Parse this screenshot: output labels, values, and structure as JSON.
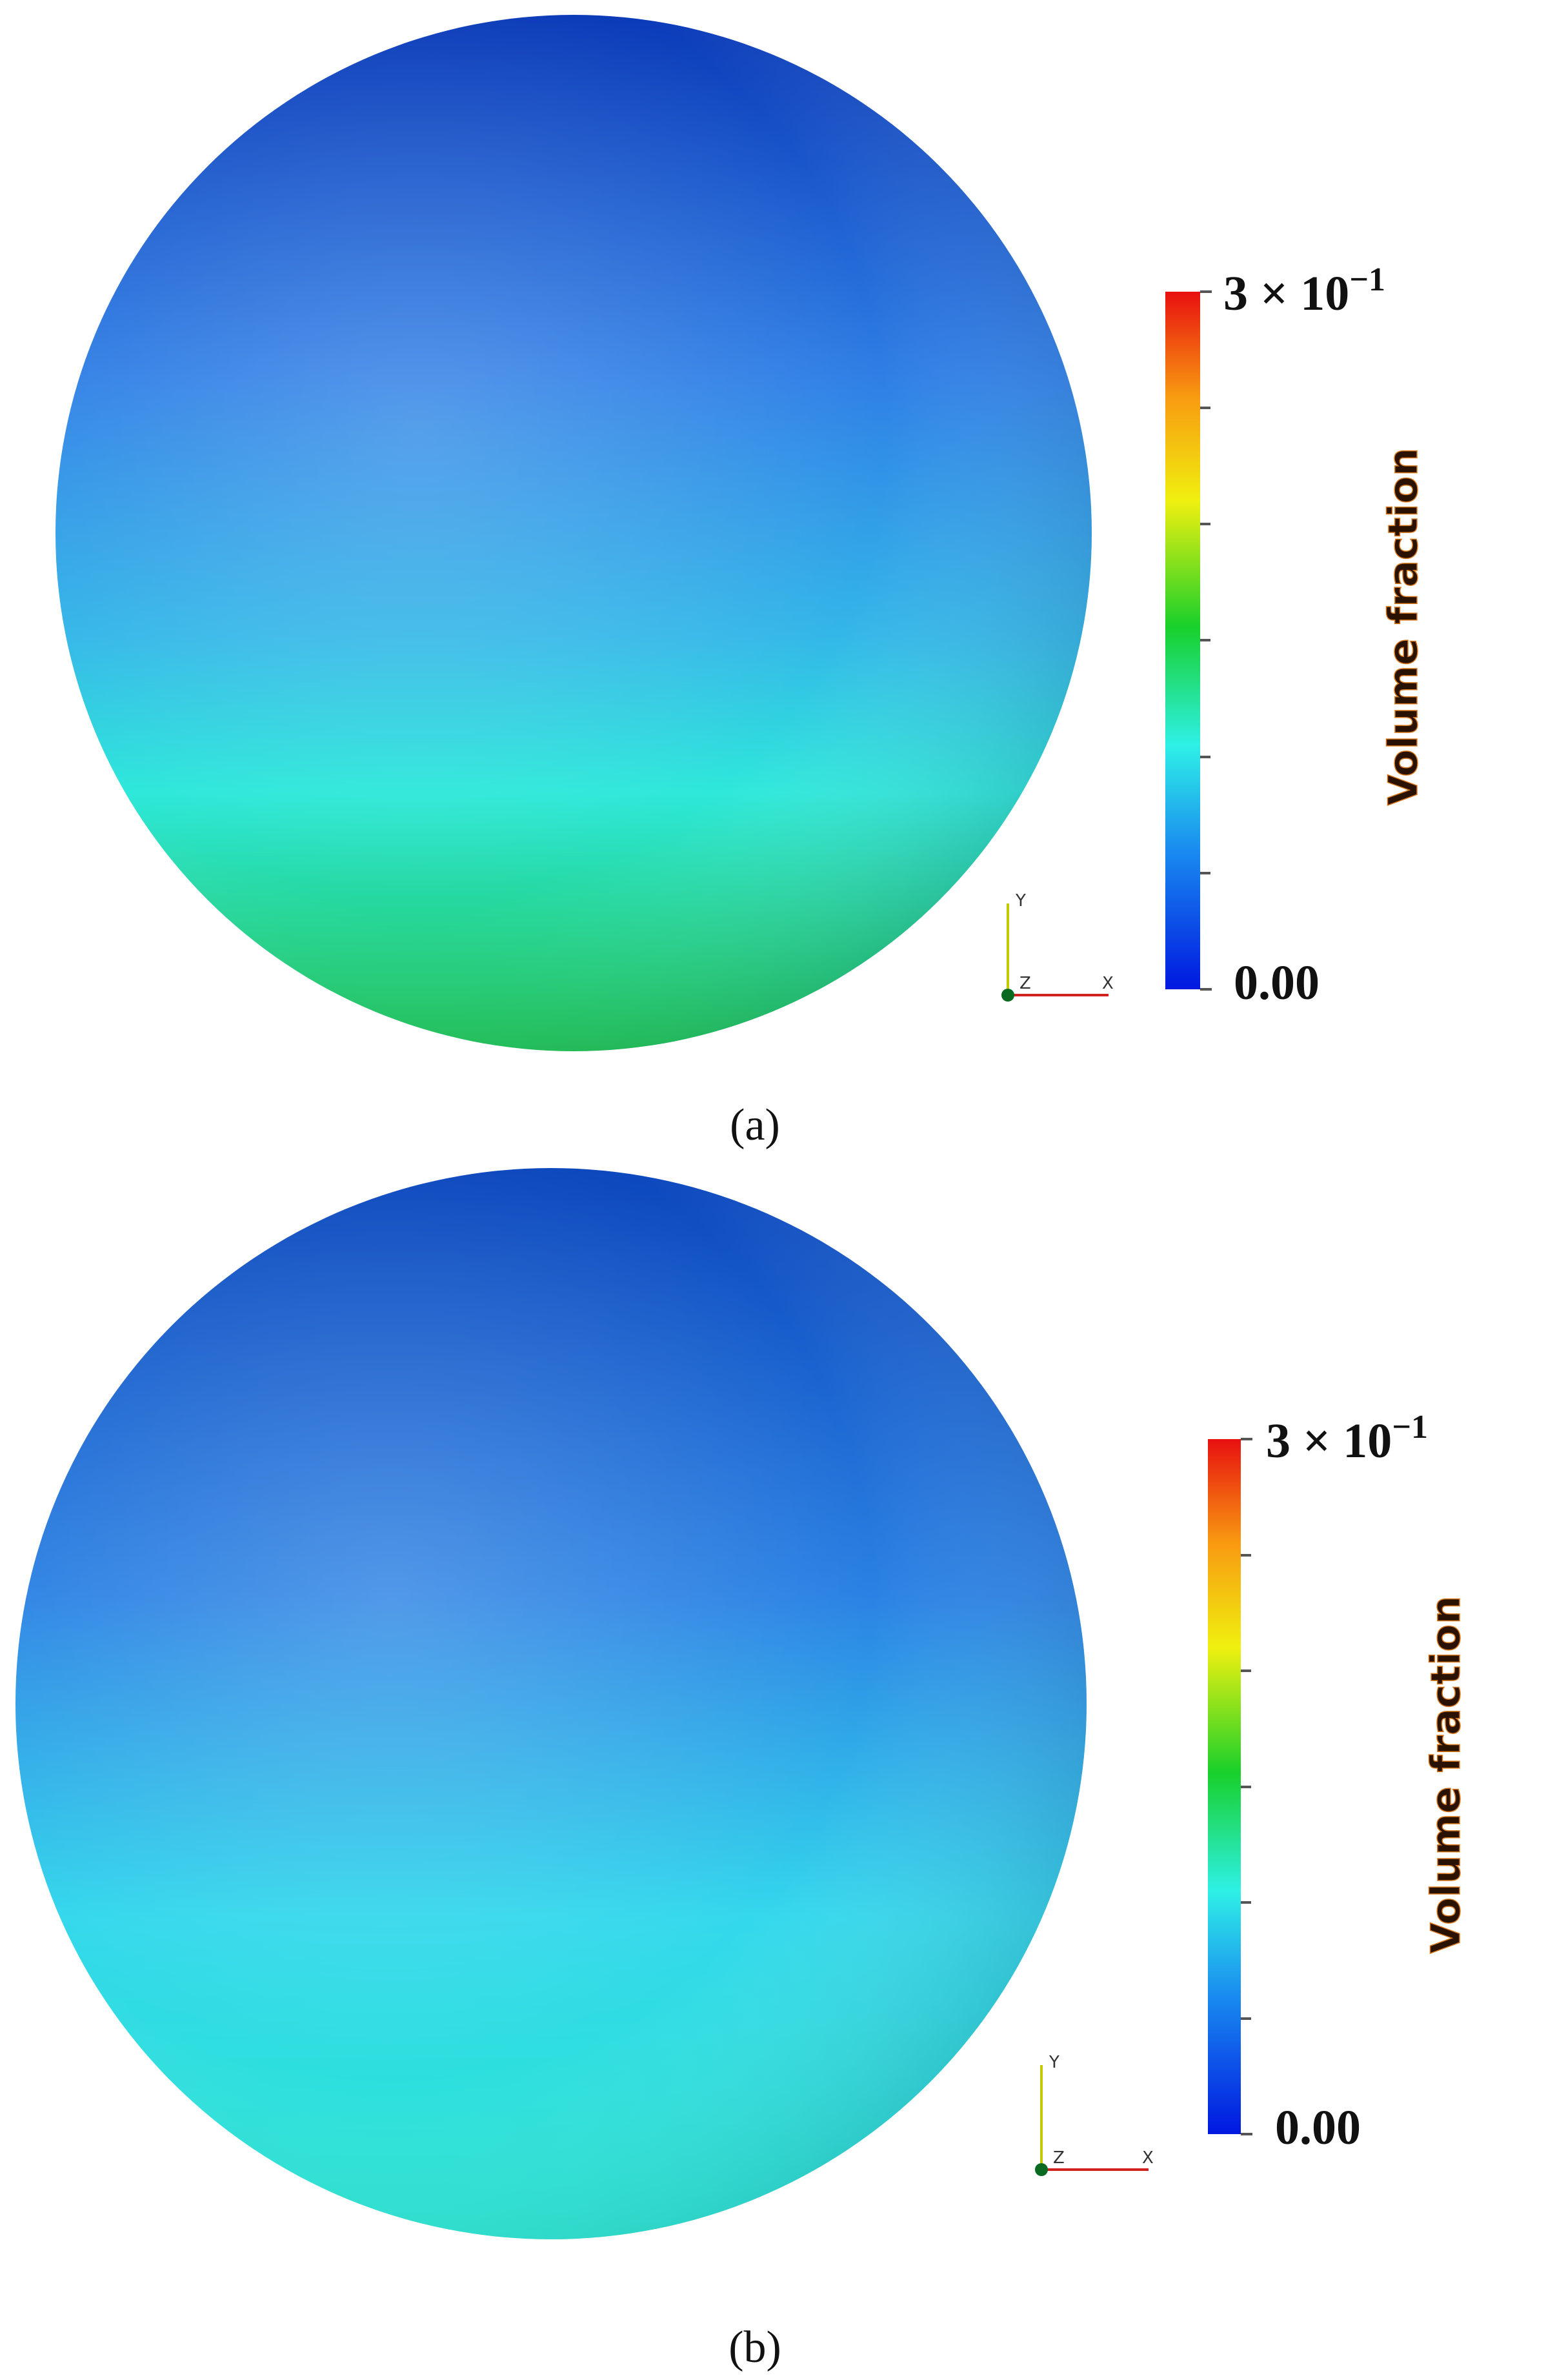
{
  "panels": [
    {
      "label": "(a)",
      "colorbar": {
        "title": "Volume fraction",
        "max_label": {
          "base": "3 × 10",
          "exponent": "−1"
        },
        "min_label": "0.00"
      },
      "axes": {
        "y": "Y",
        "z": "Z",
        "x": "X"
      }
    },
    {
      "label": "(b)",
      "colorbar": {
        "title": "Volume fraction",
        "max_label": {
          "base": "3 × 10",
          "exponent": "−1"
        },
        "min_label": "0.00"
      },
      "axes": {
        "y": "Y",
        "z": "Z",
        "x": "X"
      }
    }
  ]
}
